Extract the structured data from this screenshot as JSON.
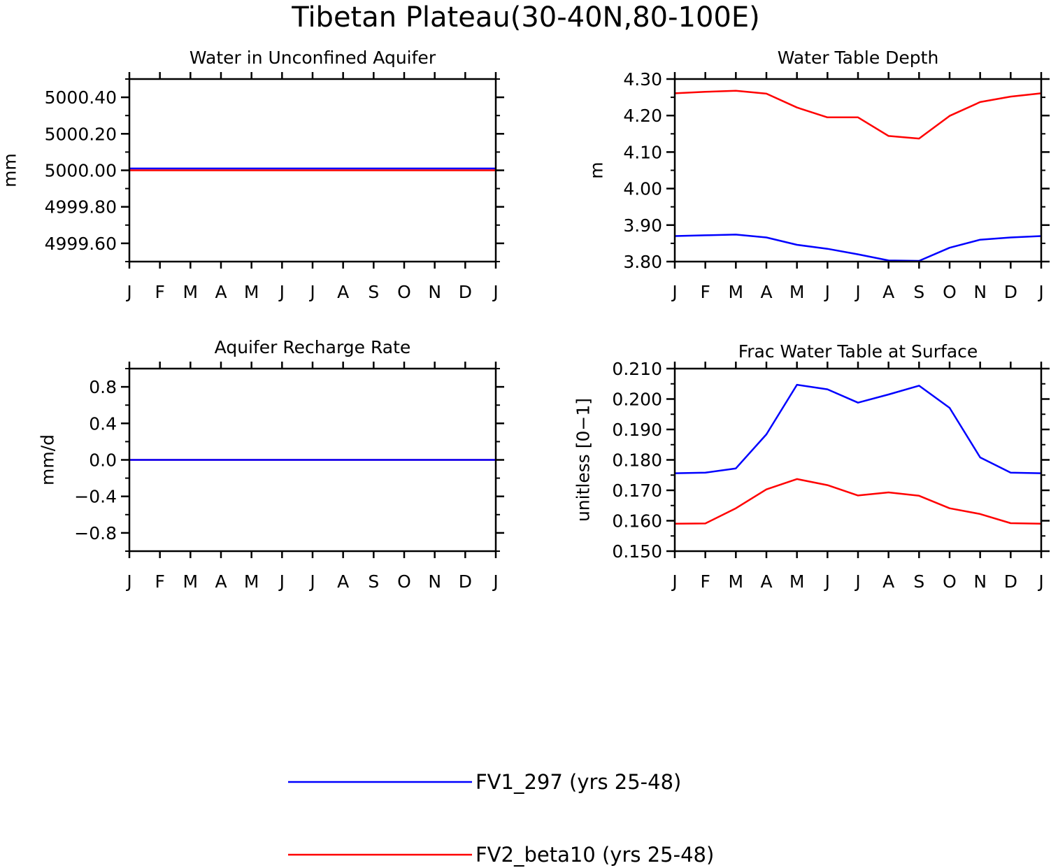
{
  "figure_title": "Tibetan Plateau(30-40N,80-100E)",
  "legend": [
    {
      "label": "FV1_297 (yrs 25-48)",
      "color": "#0000ff"
    },
    {
      "label": "FV2_beta10 (yrs 25-48)",
      "color": "#ff0000"
    }
  ],
  "chart_data": [
    {
      "type": "line",
      "title": "Water in Unconfined Aquifer",
      "ylabel": "mm",
      "xlabel": "",
      "categories": [
        "J",
        "F",
        "M",
        "A",
        "M",
        "J",
        "J",
        "A",
        "S",
        "O",
        "N",
        "D",
        "J"
      ],
      "ylim": [
        4999.5,
        5000.5
      ],
      "yticks": [
        4999.6,
        4999.8,
        5000.0,
        5000.2,
        5000.4
      ],
      "ytick_labels": [
        "4999.60",
        "4999.80",
        "5000.00",
        "5000.20",
        "5000.40"
      ],
      "series": [
        {
          "name": "FV1_297 (yrs 25-48)",
          "color": "#0000ff",
          "values": [
            5000.01,
            5000.01,
            5000.01,
            5000.01,
            5000.01,
            5000.01,
            5000.01,
            5000.01,
            5000.01,
            5000.01,
            5000.01,
            5000.01,
            5000.01
          ]
        },
        {
          "name": "FV2_beta10 (yrs 25-48)",
          "color": "#ff0000",
          "values": [
            5000.0,
            5000.0,
            5000.0,
            5000.0,
            5000.0,
            5000.0,
            5000.0,
            5000.0,
            5000.0,
            5000.0,
            5000.0,
            5000.0,
            5000.0
          ]
        }
      ]
    },
    {
      "type": "line",
      "title": "Water Table Depth",
      "ylabel": "m",
      "xlabel": "",
      "categories": [
        "J",
        "F",
        "M",
        "A",
        "M",
        "J",
        "J",
        "A",
        "S",
        "O",
        "N",
        "D",
        "J"
      ],
      "ylim": [
        3.8,
        4.3
      ],
      "yticks": [
        3.8,
        3.9,
        4.0,
        4.1,
        4.2,
        4.3
      ],
      "ytick_labels": [
        "3.80",
        "3.90",
        "4.00",
        "4.10",
        "4.20",
        "4.30"
      ],
      "series": [
        {
          "name": "FV1_297 (yrs 25-48)",
          "color": "#0000ff",
          "values": [
            3.87,
            3.872,
            3.874,
            3.866,
            3.846,
            3.835,
            3.82,
            3.803,
            3.802,
            3.838,
            3.86,
            3.866,
            3.87
          ]
        },
        {
          "name": "FV2_beta10 (yrs 25-48)",
          "color": "#ff0000",
          "values": [
            4.261,
            4.265,
            4.268,
            4.26,
            4.222,
            4.195,
            4.195,
            4.144,
            4.137,
            4.199,
            4.237,
            4.252,
            4.261
          ]
        }
      ]
    },
    {
      "type": "line",
      "title": "Aquifer Recharge Rate",
      "ylabel": "mm/d",
      "xlabel": "",
      "categories": [
        "J",
        "F",
        "M",
        "A",
        "M",
        "J",
        "J",
        "A",
        "S",
        "O",
        "N",
        "D",
        "J"
      ],
      "ylim": [
        -1.0,
        1.0
      ],
      "yticks": [
        -0.8,
        -0.4,
        0.0,
        0.4,
        0.8
      ],
      "ytick_labels": [
        "−0.8",
        "−0.4",
        "0.0",
        "0.4",
        "0.8"
      ],
      "series": [
        {
          "name": "FV2_beta10 (yrs 25-48)",
          "color": "#ff0000",
          "values": [
            0,
            0,
            0,
            0,
            0,
            0,
            0,
            0,
            0,
            0,
            0,
            0,
            0
          ]
        },
        {
          "name": "FV1_297 (yrs 25-48)",
          "color": "#0000ff",
          "values": [
            0,
            0,
            0,
            0,
            0,
            0,
            0,
            0,
            0,
            0,
            0,
            0,
            0
          ]
        }
      ]
    },
    {
      "type": "line",
      "title": "Frac Water Table at Surface",
      "ylabel": "unitless [0−1]",
      "xlabel": "",
      "categories": [
        "J",
        "F",
        "M",
        "A",
        "M",
        "J",
        "J",
        "A",
        "S",
        "O",
        "N",
        "D",
        "J"
      ],
      "ylim": [
        0.15,
        0.21
      ],
      "yticks": [
        0.15,
        0.16,
        0.17,
        0.18,
        0.19,
        0.2,
        0.21
      ],
      "ytick_labels": [
        "0.150",
        "0.160",
        "0.170",
        "0.180",
        "0.190",
        "0.200",
        "0.210"
      ],
      "series": [
        {
          "name": "FV1_297 (yrs 25-48)",
          "color": "#0000ff",
          "values": [
            0.1756,
            0.1758,
            0.1772,
            0.1884,
            0.2047,
            0.2032,
            0.1988,
            0.2015,
            0.2044,
            0.1971,
            0.1808,
            0.1758,
            0.1756
          ]
        },
        {
          "name": "FV2_beta10 (yrs 25-48)",
          "color": "#ff0000",
          "values": [
            0.159,
            0.1591,
            0.1641,
            0.1703,
            0.1737,
            0.1717,
            0.1683,
            0.1693,
            0.1682,
            0.1641,
            0.1622,
            0.1592,
            0.159
          ]
        }
      ]
    }
  ]
}
